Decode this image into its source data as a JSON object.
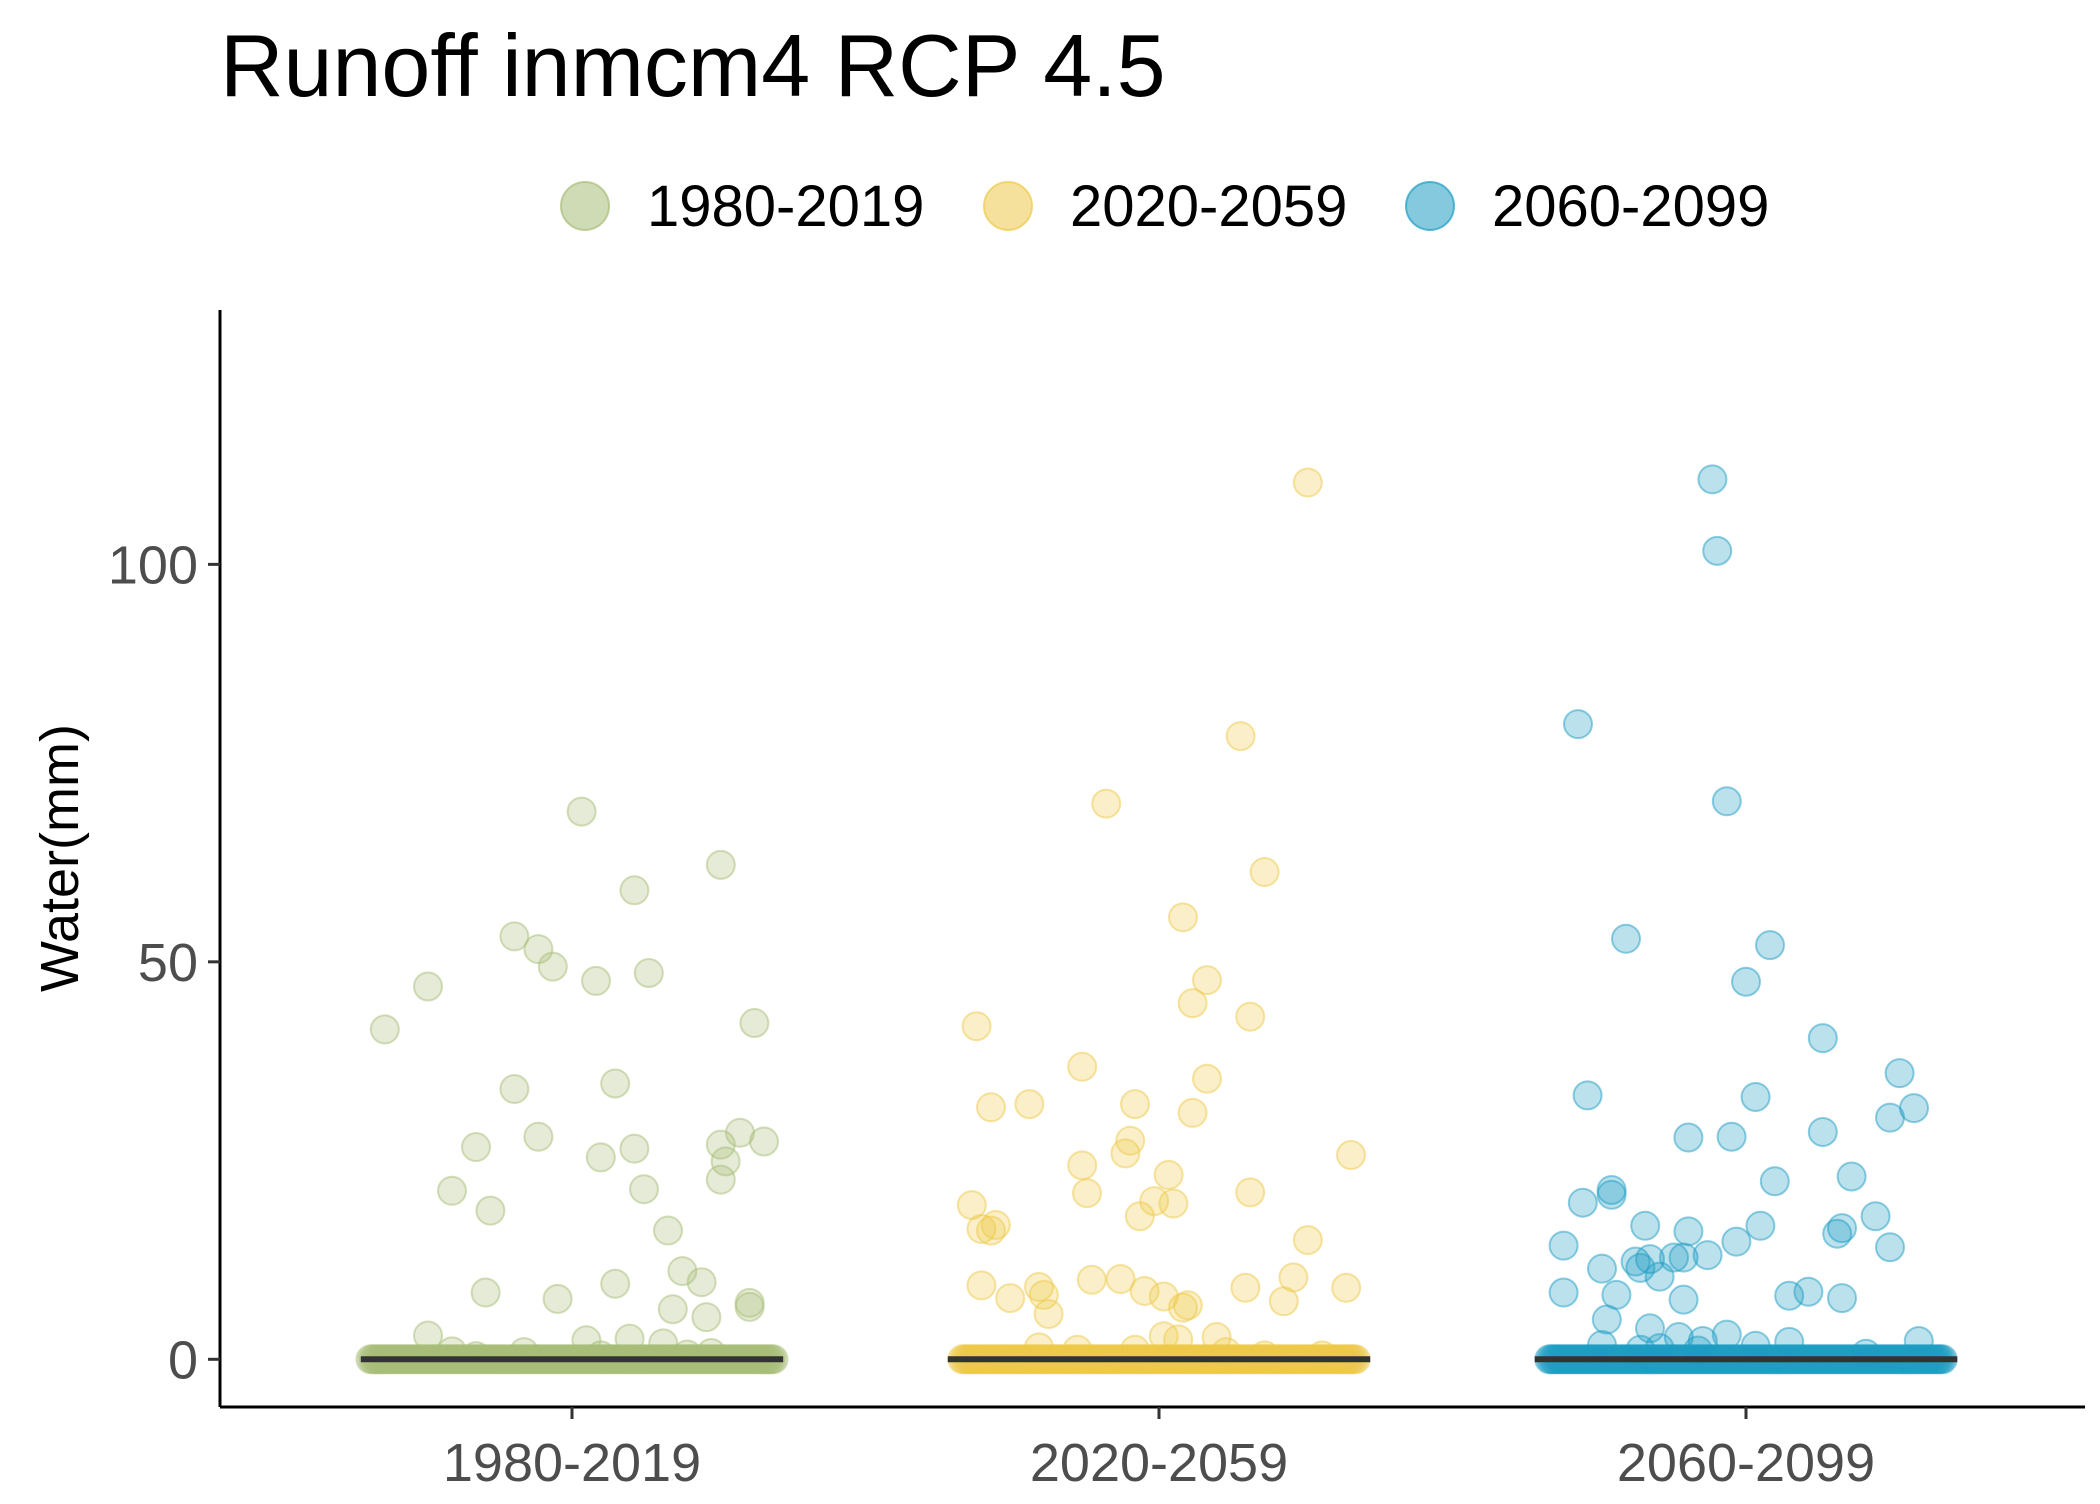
{
  "chart_data": {
    "type": "scatter",
    "title": "Runoff inmcm4 RCP 4.5",
    "xlabel": "",
    "ylabel": "Water(mm)",
    "ylim": [
      -6,
      132
    ],
    "y_ticks": [
      0,
      50,
      100
    ],
    "categories": [
      "1980-2019",
      "2020-2059",
      "2060-2099"
    ],
    "grid": false,
    "legend_position": "top",
    "colors": [
      "#a8bd78",
      "#eec94a",
      "#1f9dc3"
    ],
    "median": [
      0,
      0,
      0
    ],
    "series": [
      {
        "name": "1980-2019",
        "points": [
          [
            -0.39,
            41.5
          ],
          [
            -0.3,
            46.9
          ],
          [
            -0.25,
            21.2
          ],
          [
            -0.2,
            26.7
          ],
          [
            -0.18,
            8.4
          ],
          [
            -0.17,
            18.7
          ],
          [
            -0.12,
            34.0
          ],
          [
            -0.12,
            53.2
          ],
          [
            -0.07,
            28.0
          ],
          [
            -0.07,
            51.6
          ],
          [
            -0.04,
            49.4
          ],
          [
            0.02,
            68.9
          ],
          [
            0.05,
            47.6
          ],
          [
            0.06,
            25.4
          ],
          [
            0.09,
            9.5
          ],
          [
            0.09,
            34.7
          ],
          [
            0.13,
            59.0
          ],
          [
            0.13,
            26.5
          ],
          [
            0.15,
            21.4
          ],
          [
            0.16,
            48.6
          ],
          [
            0.2,
            16.2
          ],
          [
            0.23,
            11.1
          ],
          [
            0.21,
            6.3
          ],
          [
            0.27,
            9.7
          ],
          [
            0.28,
            5.3
          ],
          [
            0.31,
            22.6
          ],
          [
            0.31,
            62.2
          ],
          [
            0.31,
            27.0
          ],
          [
            0.32,
            24.9
          ],
          [
            0.35,
            28.5
          ],
          [
            0.37,
            6.6
          ],
          [
            0.37,
            7.1
          ],
          [
            0.38,
            42.3
          ],
          [
            0.4,
            27.4
          ],
          [
            -0.03,
            7.6
          ],
          [
            -0.3,
            3.0
          ],
          [
            0.03,
            2.4
          ],
          [
            0.12,
            2.6
          ],
          [
            0.19,
            2.0
          ],
          [
            -0.25,
            1.0
          ],
          [
            -0.1,
            0.9
          ],
          [
            0.24,
            0.6
          ],
          [
            0.29,
            0.8
          ],
          [
            -0.2,
            0.4
          ],
          [
            0.06,
            0.5
          ]
        ]
      },
      {
        "name": "2020-2059",
        "points": [
          [
            -0.39,
            19.4
          ],
          [
            -0.38,
            41.9
          ],
          [
            -0.37,
            9.3
          ],
          [
            -0.37,
            16.4
          ],
          [
            -0.35,
            31.7
          ],
          [
            -0.35,
            16.2
          ],
          [
            -0.34,
            16.9
          ],
          [
            -0.31,
            7.7
          ],
          [
            -0.27,
            32.1
          ],
          [
            -0.25,
            9.1
          ],
          [
            -0.24,
            8.1
          ],
          [
            -0.23,
            5.7
          ],
          [
            -0.16,
            24.4
          ],
          [
            -0.16,
            36.8
          ],
          [
            -0.15,
            20.9
          ],
          [
            -0.14,
            10.0
          ],
          [
            -0.11,
            69.9
          ],
          [
            -0.08,
            10.1
          ],
          [
            -0.07,
            25.9
          ],
          [
            -0.06,
            27.5
          ],
          [
            -0.05,
            32.1
          ],
          [
            -0.04,
            18.0
          ],
          [
            -0.03,
            8.6
          ],
          [
            -0.01,
            19.9
          ],
          [
            0.01,
            7.9
          ],
          [
            0.02,
            23.2
          ],
          [
            0.03,
            19.6
          ],
          [
            0.05,
            55.6
          ],
          [
            0.05,
            6.5
          ],
          [
            0.06,
            6.8
          ],
          [
            0.07,
            31.0
          ],
          [
            0.07,
            44.8
          ],
          [
            0.1,
            35.3
          ],
          [
            0.1,
            47.7
          ],
          [
            0.17,
            78.4
          ],
          [
            0.18,
            9.0
          ],
          [
            0.19,
            21.0
          ],
          [
            0.19,
            43.1
          ],
          [
            0.22,
            61.3
          ],
          [
            0.26,
            7.3
          ],
          [
            0.28,
            10.3
          ],
          [
            0.31,
            15.0
          ],
          [
            0.31,
            110.3
          ],
          [
            0.39,
            9.0
          ],
          [
            0.4,
            25.7
          ],
          [
            0.01,
            2.9
          ],
          [
            0.04,
            2.5
          ],
          [
            0.12,
            2.8
          ],
          [
            -0.17,
            1.2
          ],
          [
            -0.05,
            1.2
          ],
          [
            -0.25,
            1.5
          ],
          [
            0.14,
            0.9
          ],
          [
            0.22,
            0.5
          ],
          [
            0.34,
            0.5
          ]
        ]
      },
      {
        "name": "2060-2099",
        "points": [
          [
            -0.38,
            14.3
          ],
          [
            -0.38,
            8.4
          ],
          [
            -0.35,
            79.9
          ],
          [
            -0.34,
            19.7
          ],
          [
            -0.33,
            33.2
          ],
          [
            -0.3,
            11.4
          ],
          [
            -0.29,
            5.0
          ],
          [
            -0.28,
            20.7
          ],
          [
            -0.28,
            21.3
          ],
          [
            -0.27,
            8.1
          ],
          [
            -0.25,
            52.9
          ],
          [
            -0.23,
            12.3
          ],
          [
            -0.22,
            11.5
          ],
          [
            -0.21,
            16.8
          ],
          [
            -0.2,
            12.6
          ],
          [
            -0.2,
            3.9
          ],
          [
            -0.18,
            10.4
          ],
          [
            -0.15,
            12.8
          ],
          [
            -0.14,
            2.8
          ],
          [
            -0.13,
            12.8
          ],
          [
            -0.13,
            7.5
          ],
          [
            -0.12,
            16.1
          ],
          [
            -0.12,
            27.9
          ],
          [
            -0.09,
            2.3
          ],
          [
            -0.08,
            13.1
          ],
          [
            -0.07,
            110.7
          ],
          [
            -0.06,
            101.7
          ],
          [
            -0.04,
            3.1
          ],
          [
            -0.04,
            70.2
          ],
          [
            -0.03,
            28.0
          ],
          [
            -0.02,
            14.8
          ],
          [
            0.0,
            47.5
          ],
          [
            0.02,
            33.0
          ],
          [
            0.03,
            16.8
          ],
          [
            0.05,
            52.1
          ],
          [
            0.06,
            22.4
          ],
          [
            0.09,
            8.0
          ],
          [
            0.13,
            8.5
          ],
          [
            0.16,
            28.6
          ],
          [
            0.16,
            40.4
          ],
          [
            0.19,
            15.8
          ],
          [
            0.2,
            16.5
          ],
          [
            0.2,
            7.7
          ],
          [
            0.22,
            23.0
          ],
          [
            0.27,
            18.0
          ],
          [
            0.3,
            14.1
          ],
          [
            0.3,
            30.4
          ],
          [
            0.32,
            36.0
          ],
          [
            0.35,
            31.6
          ],
          [
            0.36,
            2.3
          ],
          [
            -0.3,
            1.8
          ],
          [
            -0.22,
            1.2
          ],
          [
            -0.18,
            1.4
          ],
          [
            0.02,
            1.7
          ],
          [
            0.09,
            2.2
          ],
          [
            -0.1,
            1.1
          ],
          [
            0.25,
            0.7
          ]
        ]
      }
    ],
    "baseline_strip": {
      "note_free": true,
      "ranges": [
        [
          -0.42,
          0.42
        ],
        [
          -0.41,
          0.41
        ],
        [
          -0.41,
          0.41
        ]
      ]
    }
  }
}
